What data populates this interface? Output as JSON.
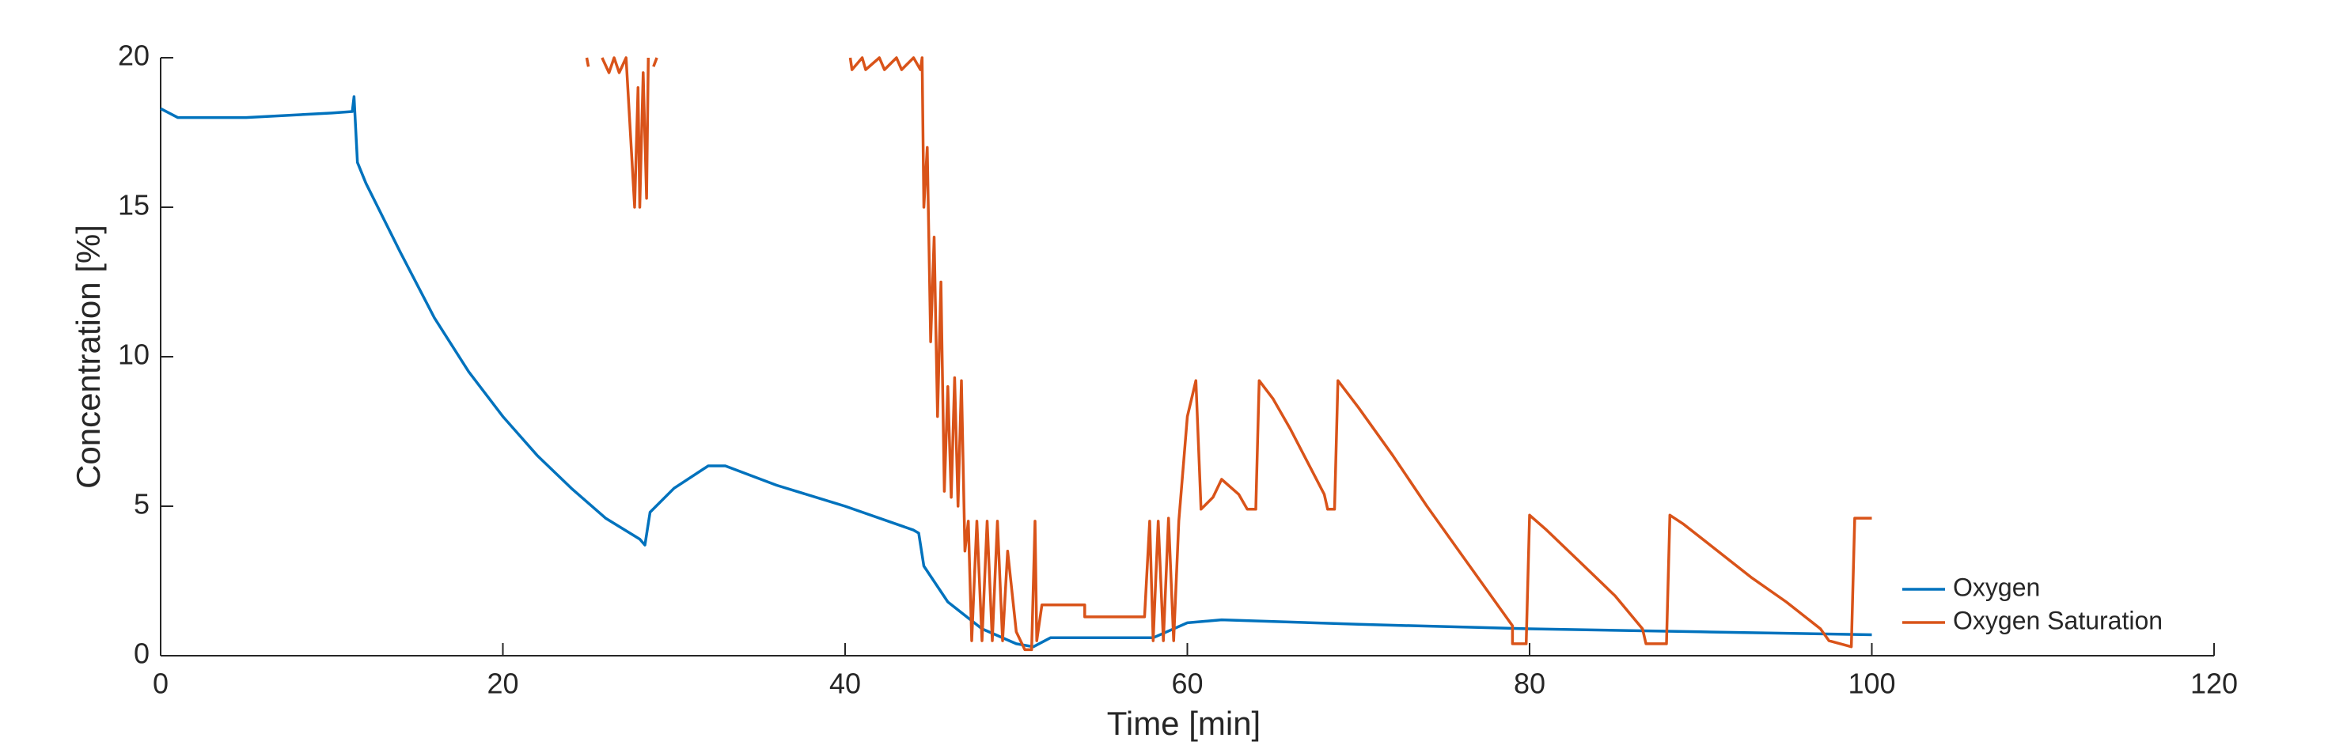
{
  "chart_data": {
    "type": "line",
    "xlabel": "Time [min]",
    "ylabel": "Concentration [%]",
    "xlim": [
      0,
      120
    ],
    "xticks": [
      0,
      20,
      40,
      60,
      80,
      100,
      120
    ],
    "ylim": [
      0,
      20
    ],
    "yticks": [
      0,
      5,
      10,
      15,
      20
    ],
    "legend": "lower right",
    "series": [
      {
        "name": "Oxygen",
        "color": "#0072BD",
        "x": [
          0,
          1,
          5,
          10,
          11.2,
          11.3,
          11.5,
          12,
          14,
          16,
          18,
          20,
          22,
          24,
          26,
          28,
          28.3,
          28.6,
          30,
          32,
          33,
          36,
          40,
          44,
          44.3,
          44.6,
          46,
          48,
          50,
          51,
          52,
          56,
          58,
          60,
          62,
          70,
          80,
          90,
          100
        ],
        "values": [
          18.3,
          18.0,
          18.0,
          18.15,
          18.2,
          18.7,
          16.5,
          15.8,
          13.5,
          11.3,
          9.5,
          8.0,
          6.7,
          5.6,
          4.6,
          3.9,
          3.7,
          4.8,
          5.6,
          6.35,
          6.35,
          5.7,
          5.0,
          4.2,
          4.1,
          3.0,
          1.8,
          0.9,
          0.4,
          0.3,
          0.6,
          0.6,
          0.6,
          1.1,
          1.2,
          1.05,
          0.9,
          0.8,
          0.7
        ]
      },
      {
        "name": "Oxygen Saturation",
        "color": "#D95319",
        "x": [
          24.9,
          25.0,
          null,
          25.8,
          26.2,
          26.5,
          26.8,
          27.2,
          27.5,
          27.7,
          27.9,
          28.0,
          28.2,
          28.4,
          28.5,
          null,
          28.8,
          29.0,
          null,
          40.3,
          40.4,
          41,
          41.2,
          42,
          42.3,
          43,
          43.3,
          44,
          44.4,
          44.5,
          44.6,
          44.8,
          45,
          45.2,
          45.4,
          45.6,
          45.8,
          46,
          46.2,
          46.4,
          46.6,
          46.8,
          47,
          47.2,
          47.4,
          47.7,
          48,
          48.3,
          48.6,
          48.9,
          49.2,
          49.5,
          50,
          50.5,
          50.9,
          51.1,
          51.2,
          51.5,
          54,
          54,
          57.5,
          57.8,
          58,
          58.3,
          58.6,
          58.9,
          59.2,
          59.5,
          60,
          60.5,
          60.8,
          61.5,
          62,
          63,
          63.5,
          64,
          64.2,
          65,
          66,
          67,
          68,
          68.2,
          68.6,
          68.8,
          70,
          72,
          74,
          76,
          78,
          79,
          79,
          79.8,
          80,
          81,
          83,
          85,
          86.6,
          86.8,
          88,
          88.2,
          89,
          91,
          93,
          95,
          97,
          97.5,
          98.8,
          99,
          100
        ],
        "values": [
          20,
          19.7,
          null,
          20,
          19.5,
          20,
          19.5,
          20,
          17,
          15,
          19,
          15,
          19.5,
          15.3,
          20,
          null,
          19.7,
          20,
          null,
          20,
          19.6,
          20,
          19.6,
          20,
          19.6,
          20,
          19.6,
          20,
          19.6,
          20,
          15,
          17,
          10.5,
          14,
          8,
          12.5,
          5.5,
          9,
          5.3,
          9.3,
          5,
          9.2,
          3.5,
          4.5,
          0.5,
          4.5,
          0.5,
          4.5,
          0.5,
          4.5,
          0.5,
          3.5,
          0.8,
          0.2,
          0.2,
          4.5,
          0.5,
          1.7,
          1.7,
          1.3,
          1.3,
          4.5,
          0.5,
          4.5,
          0.5,
          4.6,
          0.5,
          4.5,
          8,
          9.2,
          4.9,
          5.3,
          5.9,
          5.4,
          4.9,
          4.9,
          9.2,
          8.6,
          7.6,
          6.5,
          5.4,
          4.9,
          4.9,
          9.2,
          8.3,
          6.7,
          5.0,
          3.4,
          1.8,
          1.0,
          0.4,
          0.4,
          4.7,
          4.2,
          3.1,
          2.0,
          0.9,
          0.4,
          0.4,
          4.7,
          4.4,
          3.5,
          2.6,
          1.8,
          0.9,
          0.5,
          0.3,
          4.6,
          4.6
        ]
      }
    ]
  }
}
